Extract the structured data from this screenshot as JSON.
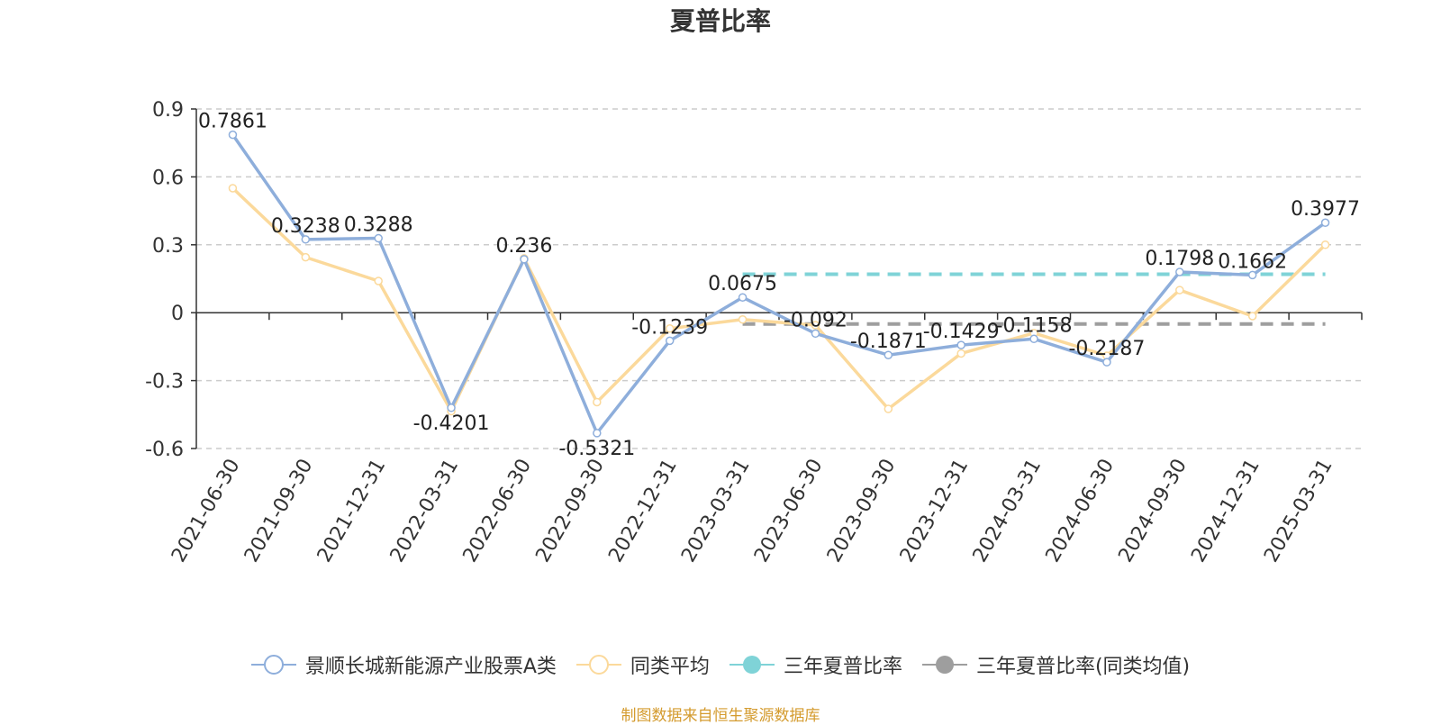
{
  "chart_data": {
    "type": "line",
    "title": "夏普比率",
    "xlabel": "",
    "ylabel": "",
    "ylim": [
      -0.6,
      0.9
    ],
    "yticks": [
      -0.6,
      -0.3,
      0,
      0.3,
      0.6,
      0.9
    ],
    "grid": true,
    "legend_position": "bottom",
    "categories": [
      "2021-06-30",
      "2021-09-30",
      "2021-12-31",
      "2022-03-31",
      "2022-06-30",
      "2022-09-30",
      "2022-12-31",
      "2023-03-31",
      "2023-06-30",
      "2023-09-30",
      "2023-12-31",
      "2024-03-31",
      "2024-06-30",
      "2024-09-30",
      "2024-12-31",
      "2025-03-31"
    ],
    "series": [
      {
        "name": "景顺长城新能源产业股票A类",
        "color": "#8eaedb",
        "values": [
          0.7861,
          0.3238,
          0.3288,
          -0.4201,
          0.236,
          -0.5321,
          -0.1239,
          0.0675,
          -0.092,
          -0.1871,
          -0.1429,
          -0.1158,
          -0.2187,
          0.1798,
          0.1662,
          0.3977
        ],
        "labels": [
          "0.7861",
          "0.3238",
          "0.3288",
          "-0.4201",
          "0.236",
          "-0.5321",
          "-0.1239",
          "0.0675",
          "-0.092",
          "-0.1871",
          "-0.1429",
          "-0.1158",
          "-0.2187",
          "0.1798",
          "0.1662",
          "0.3977"
        ]
      },
      {
        "name": "同类平均",
        "color": "#fbd99b",
        "values": [
          0.55,
          0.245,
          0.14,
          -0.435,
          0.24,
          -0.395,
          -0.07,
          -0.03,
          -0.055,
          -0.425,
          -0.18,
          -0.09,
          -0.19,
          0.1,
          -0.015,
          0.3
        ]
      }
    ],
    "reference_lines": [
      {
        "name": "三年夏普比率",
        "color": "#7fd3d7",
        "value": 0.17,
        "from_index": 7,
        "to_index": 15
      },
      {
        "name": "三年夏普比率(同类均值)",
        "color": "#9e9e9e",
        "value": -0.05,
        "from_index": 7,
        "to_index": 15
      }
    ]
  },
  "source_note": "制图数据来自恒生聚源数据库"
}
